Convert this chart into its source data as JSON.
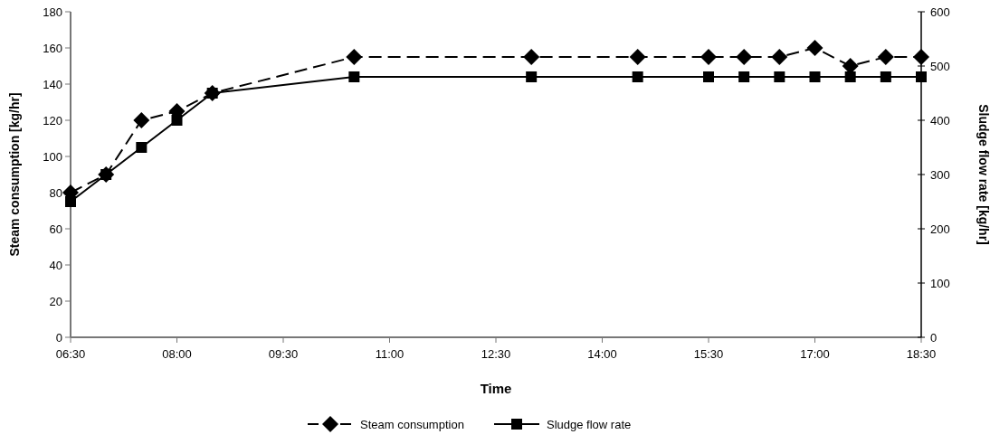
{
  "chart_data": {
    "type": "line",
    "xlabel": "Time",
    "ylabel": "Steam consumption [kg/hr]",
    "y2label": "Sludge flow rate [kg/hr]",
    "x": [
      6.5,
      7,
      7.5,
      8,
      8.5,
      10.5,
      13,
      14.5,
      15.5,
      16,
      16.5,
      17,
      17.5,
      18,
      18.5
    ],
    "xlim": [
      6.5,
      18.5
    ],
    "xticks": [
      {
        "value": 6.5,
        "label": "06:30"
      },
      {
        "value": 8,
        "label": "08:00"
      },
      {
        "value": 9.5,
        "label": "09:30"
      },
      {
        "value": 11,
        "label": "11:00"
      },
      {
        "value": 12.5,
        "label": "12:30"
      },
      {
        "value": 14,
        "label": "14:00"
      },
      {
        "value": 15.5,
        "label": "15:30"
      },
      {
        "value": 17,
        "label": "17:00"
      },
      {
        "value": 18.5,
        "label": "18:30"
      }
    ],
    "ylim": [
      0,
      180
    ],
    "yticks": [
      0,
      20,
      40,
      60,
      80,
      100,
      120,
      140,
      160,
      180
    ],
    "y2lim": [
      0,
      600
    ],
    "y2ticks": [
      0,
      100,
      200,
      300,
      400,
      500,
      600
    ],
    "series": [
      {
        "name": "Steam consumption",
        "color": "#000000",
        "marker": "diamond",
        "line_style": "dashed",
        "values": [
          80,
          90,
          120,
          125,
          135,
          155,
          155,
          155,
          155,
          155,
          155,
          160,
          150,
          155,
          155
        ]
      },
      {
        "name": "Sludge flow rate",
        "color": "#000000",
        "marker": "square",
        "line_style": "solid",
        "axis": "y2",
        "values": [
          250,
          300,
          350,
          400,
          450,
          480,
          480,
          480,
          480,
          480,
          480,
          480,
          480,
          480,
          480
        ]
      }
    ],
    "grid": false,
    "legend": "bottom"
  }
}
